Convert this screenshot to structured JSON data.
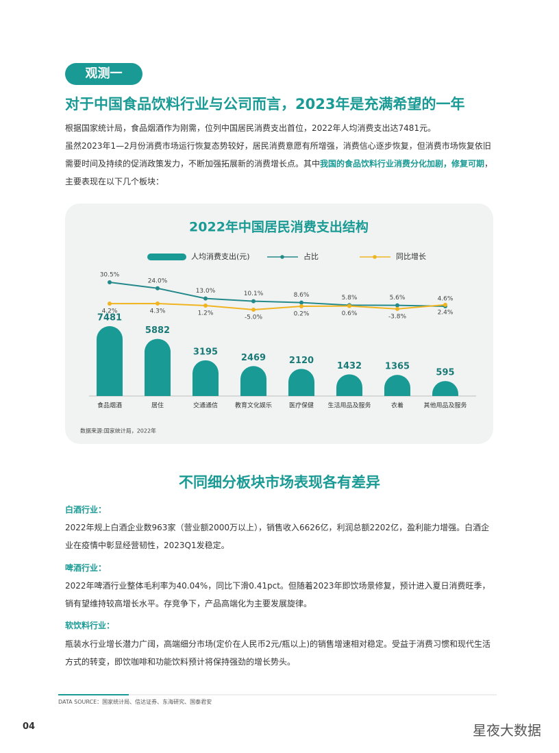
{
  "tag": "观测一",
  "title": "对于中国食品饮料行业与公司而言，2023年是充满希望的一年",
  "intro_1": "根据国家统计局，食品烟酒作为刚需，位列中国居民消费支出首位，2022年人均消费支出达7481元。",
  "intro_2": {
    "before": "虽然2023年1—2月份消费市场运行恢复态势较好，居民消费意愿有所增强，消费信心逐步恢复，但消费市场恢复依旧需要时间及持续的促消政策发力，不断加强拓展新的消费增长点。其中",
    "highlight": "我国的食品饮料行业消费分化加剧，修复可期",
    "after": "，主要表现在以下几个板块："
  },
  "chart_data": {
    "type": "bar",
    "title": "2022年中国居民消费支出结构",
    "categories": [
      "食品烟酒",
      "居住",
      "交通通信",
      "教育文化娱乐",
      "医疗保健",
      "生活用品及服务",
      "衣着",
      "其他用品及服务"
    ],
    "series": [
      {
        "name": "人均消费支出(元)",
        "type": "bar",
        "color": "#1a9a94",
        "values": [
          7481,
          5882,
          3195,
          2469,
          2120,
          1432,
          1365,
          595
        ]
      },
      {
        "name": "占比",
        "type": "line",
        "color": "#23898a",
        "values": [
          30.5,
          24.0,
          13.0,
          10.1,
          8.6,
          5.8,
          5.6,
          4.6
        ],
        "value_labels": [
          "30.5%",
          "24.0%",
          "13.0%",
          "10.1%",
          "8.6%",
          "5.8%",
          "5.6%",
          "4.6%"
        ]
      },
      {
        "name": "同比增长",
        "type": "line",
        "color": "#f0b420",
        "values": [
          4.2,
          4.3,
          1.2,
          -5.0,
          0.2,
          0.6,
          -3.8,
          2.4
        ],
        "value_labels": [
          "4.2%",
          "4.3%",
          "1.2%",
          "-5.0%",
          "0.2%",
          "0.6%",
          "-3.8%",
          "2.4%"
        ]
      }
    ],
    "source": "数据来源:国家统计局，2022年"
  },
  "section": {
    "title": "不同细分板块市场表现各有差异",
    "items": [
      {
        "heading": "白酒行业：",
        "text": "2022年规上白酒企业数963家（营业额2000万以上），销售收入6626亿，利润总额2202亿，盈利能力增强。白酒企业在疫情中彰显经营韧性，2023Q1发稳定。"
      },
      {
        "heading": "啤酒行业：",
        "text": "2022年啤酒行业整体毛利率为40.04%，同比下滑0.41pct。但随着2023年即饮场景修复，预计进入夏日消费旺季，销有望维持较高增长水平。存竞争下，产品高端化为主要发展旋律。"
      },
      {
        "heading": "软饮料行业：",
        "text": "瓶装水行业增长潜力广阔，高端细分市场(定价在人民币2元/瓶以上)的销售增速相对稳定。受益于消费习惯和现代生活方式的转变，即饮咖啡和功能饮料预计将保持强劲的增长势头。"
      }
    ]
  },
  "footer": {
    "data_source": "DATA SOURCE：国家统计局、信达证券、东海研究、国泰君安",
    "page_number": "04",
    "watermark": "星夜大数据"
  }
}
